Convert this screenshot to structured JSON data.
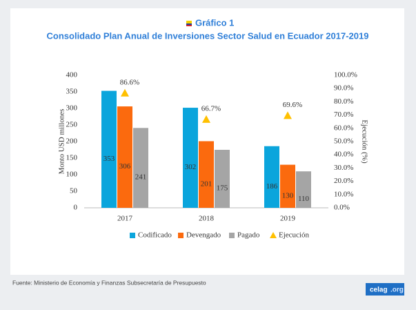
{
  "chart_data": {
    "type": "bar",
    "title": "Gráfico 1",
    "subtitle": "Consolidado Plan Anual de Inversiones Sector Salud en Ecuador 2017-2019",
    "y_label": "Monto USD millones",
    "y2_label": "Ejecución (%)",
    "categories": [
      "2017",
      "2018",
      "2019"
    ],
    "series": [
      {
        "name": "Codificado",
        "color": "#0ba5dc",
        "values": [
          353,
          302,
          186
        ]
      },
      {
        "name": "Devengado",
        "color": "#fb6a0e",
        "values": [
          306,
          201,
          130
        ]
      },
      {
        "name": "Pagado",
        "color": "#a5a5a5",
        "values": [
          241,
          175,
          110
        ]
      },
      {
        "name": "Ejecución",
        "color": "#ffc000",
        "axis": "y2",
        "marker": "triangle",
        "values": [
          86.6,
          66.7,
          69.6
        ],
        "value_labels": [
          "86.6%",
          "66.7%",
          "69.6%"
        ]
      }
    ],
    "ylim": [
      0,
      400
    ],
    "yticks": [
      0,
      50,
      100,
      150,
      200,
      250,
      300,
      350,
      400
    ],
    "y2lim": [
      0,
      100
    ],
    "y2ticks": [
      {
        "value": 0,
        "label": "0.0%"
      },
      {
        "value": 10,
        "label": "10.0%"
      },
      {
        "value": 20,
        "label": "20.0%"
      },
      {
        "value": 30,
        "label": "30.0%"
      },
      {
        "value": 40,
        "label": "40.0%"
      },
      {
        "value": 50,
        "label": "50.0%"
      },
      {
        "value": 60,
        "label": "60.0%"
      },
      {
        "value": 70,
        "label": "70.0%"
      },
      {
        "value": 80,
        "label": "80.0%"
      },
      {
        "value": 90,
        "label": "90.0%"
      },
      {
        "value": 100,
        "label": "100.0%"
      }
    ],
    "grid": false,
    "legend": "bottom"
  },
  "footer": {
    "source": "Fuente: Ministerio de Economía y Finanzas Subsecretaría de Presupuesto",
    "logo": [
      "celag",
      ".org"
    ]
  }
}
